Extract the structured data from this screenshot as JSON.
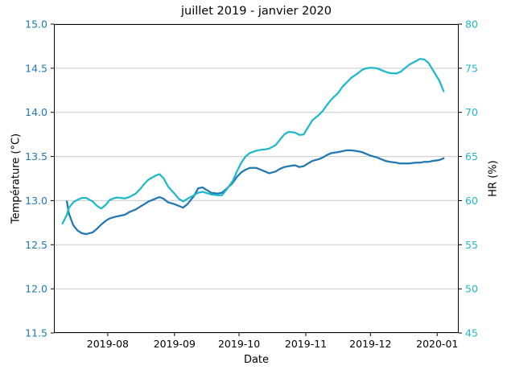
{
  "title": "juillet 2019 - janvier 2020",
  "axes": {
    "x": {
      "label": "Date",
      "ticks": [
        "2019-08",
        "2019-09",
        "2019-10",
        "2019-11",
        "2019-12",
        "2020-01"
      ]
    },
    "y_left": {
      "label": "Température (°C)",
      "color": "#1f77b4",
      "min": 11.5,
      "max": 15.0,
      "ticks": [
        "15.0",
        "14.5",
        "14.0",
        "13.5",
        "13.0",
        "12.5",
        "12.0",
        "11.5"
      ]
    },
    "y_right": {
      "label": "HR (%)",
      "color": "#1eb8cc",
      "min": 45,
      "max": 80,
      "ticks": [
        "80",
        "75",
        "70",
        "65",
        "60",
        "55",
        "50",
        "45"
      ]
    }
  },
  "chart_data": {
    "type": "line",
    "title": "juillet 2019 - janvier 2020",
    "xlabel": "Date",
    "x_type": "date",
    "xlim": [
      "2019-07-07",
      "2020-01-11"
    ],
    "grid": "horizontal",
    "grid_color": "#c9c9c9",
    "background": "#ffffff",
    "legend": "none",
    "series": [
      {
        "id": "temperature",
        "name": "Température (°C)",
        "axis": "left",
        "color": "#1f77b4",
        "ylim": [
          11.5,
          15.0
        ],
        "points": [
          [
            "2019-07-13",
            12.99
          ],
          [
            "2019-07-14",
            12.85
          ],
          [
            "2019-07-16",
            12.72
          ],
          [
            "2019-07-18",
            12.66
          ],
          [
            "2019-07-20",
            12.63
          ],
          [
            "2019-07-22",
            12.62
          ],
          [
            "2019-07-25",
            12.64
          ],
          [
            "2019-07-27",
            12.68
          ],
          [
            "2019-07-29",
            12.73
          ],
          [
            "2019-07-31",
            12.77
          ],
          [
            "2019-08-02",
            12.8
          ],
          [
            "2019-08-05",
            12.82
          ],
          [
            "2019-08-07",
            12.83
          ],
          [
            "2019-08-09",
            12.84
          ],
          [
            "2019-08-11",
            12.87
          ],
          [
            "2019-08-14",
            12.9
          ],
          [
            "2019-08-16",
            12.93
          ],
          [
            "2019-08-18",
            12.96
          ],
          [
            "2019-08-20",
            12.99
          ],
          [
            "2019-08-23",
            13.02
          ],
          [
            "2019-08-25",
            13.04
          ],
          [
            "2019-08-27",
            13.02
          ],
          [
            "2019-08-29",
            12.98
          ],
          [
            "2019-09-01",
            12.96
          ],
          [
            "2019-09-03",
            12.94
          ],
          [
            "2019-09-05",
            12.92
          ],
          [
            "2019-09-07",
            12.96
          ],
          [
            "2019-09-10",
            13.05
          ],
          [
            "2019-09-12",
            13.14
          ],
          [
            "2019-09-14",
            13.15
          ],
          [
            "2019-09-16",
            13.12
          ],
          [
            "2019-09-18",
            13.09
          ],
          [
            "2019-09-21",
            13.08
          ],
          [
            "2019-09-23",
            13.09
          ],
          [
            "2019-09-25",
            13.13
          ],
          [
            "2019-09-28",
            13.2
          ],
          [
            "2019-09-30",
            13.27
          ],
          [
            "2019-10-02",
            13.32
          ],
          [
            "2019-10-04",
            13.35
          ],
          [
            "2019-10-06",
            13.37
          ],
          [
            "2019-10-09",
            13.37
          ],
          [
            "2019-10-11",
            13.35
          ],
          [
            "2019-10-13",
            13.33
          ],
          [
            "2019-10-15",
            13.31
          ],
          [
            "2019-10-18",
            13.33
          ],
          [
            "2019-10-20",
            13.36
          ],
          [
            "2019-10-22",
            13.38
          ],
          [
            "2019-10-24",
            13.39
          ],
          [
            "2019-10-27",
            13.4
          ],
          [
            "2019-10-29",
            13.38
          ],
          [
            "2019-10-31",
            13.39
          ],
          [
            "2019-11-02",
            13.42
          ],
          [
            "2019-11-04",
            13.45
          ],
          [
            "2019-11-07",
            13.47
          ],
          [
            "2019-11-09",
            13.49
          ],
          [
            "2019-11-11",
            13.52
          ],
          [
            "2019-11-13",
            13.54
          ],
          [
            "2019-11-16",
            13.55
          ],
          [
            "2019-11-18",
            13.56
          ],
          [
            "2019-11-20",
            13.57
          ],
          [
            "2019-11-22",
            13.57
          ],
          [
            "2019-11-25",
            13.56
          ],
          [
            "2019-11-27",
            13.55
          ],
          [
            "2019-11-29",
            13.53
          ],
          [
            "2019-12-01",
            13.51
          ],
          [
            "2019-12-04",
            13.49
          ],
          [
            "2019-12-06",
            13.47
          ],
          [
            "2019-12-08",
            13.45
          ],
          [
            "2019-12-10",
            13.44
          ],
          [
            "2019-12-13",
            13.43
          ],
          [
            "2019-12-15",
            13.42
          ],
          [
            "2019-12-17",
            13.42
          ],
          [
            "2019-12-19",
            13.42
          ],
          [
            "2019-12-22",
            13.43
          ],
          [
            "2019-12-24",
            13.43
          ],
          [
            "2019-12-26",
            13.44
          ],
          [
            "2019-12-28",
            13.44
          ],
          [
            "2019-12-30",
            13.45
          ],
          [
            "2020-01-02",
            13.46
          ],
          [
            "2020-01-04",
            13.48
          ]
        ]
      },
      {
        "id": "humidity",
        "name": "HR (%)",
        "axis": "right",
        "color": "#1eb8cc",
        "ylim": [
          45,
          80
        ],
        "points": [
          [
            "2019-07-11",
            57.4
          ],
          [
            "2019-07-13",
            58.4
          ],
          [
            "2019-07-14",
            59.2
          ],
          [
            "2019-07-16",
            59.8
          ],
          [
            "2019-07-18",
            60.1
          ],
          [
            "2019-07-20",
            60.3
          ],
          [
            "2019-07-22",
            60.3
          ],
          [
            "2019-07-25",
            59.9
          ],
          [
            "2019-07-27",
            59.4
          ],
          [
            "2019-07-29",
            59.1
          ],
          [
            "2019-07-31",
            59.5
          ],
          [
            "2019-08-02",
            60.1
          ],
          [
            "2019-08-05",
            60.35
          ],
          [
            "2019-08-07",
            60.3
          ],
          [
            "2019-08-09",
            60.25
          ],
          [
            "2019-08-11",
            60.4
          ],
          [
            "2019-08-14",
            60.8
          ],
          [
            "2019-08-16",
            61.3
          ],
          [
            "2019-08-18",
            61.9
          ],
          [
            "2019-08-20",
            62.4
          ],
          [
            "2019-08-23",
            62.8
          ],
          [
            "2019-08-25",
            63.0
          ],
          [
            "2019-08-27",
            62.5
          ],
          [
            "2019-08-29",
            61.6
          ],
          [
            "2019-09-01",
            60.8
          ],
          [
            "2019-09-03",
            60.2
          ],
          [
            "2019-09-05",
            59.9
          ],
          [
            "2019-09-07",
            60.2
          ],
          [
            "2019-09-10",
            60.6
          ],
          [
            "2019-09-12",
            60.9
          ],
          [
            "2019-09-14",
            61.0
          ],
          [
            "2019-09-16",
            60.85
          ],
          [
            "2019-09-18",
            60.7
          ],
          [
            "2019-09-21",
            60.6
          ],
          [
            "2019-09-23",
            60.6
          ],
          [
            "2019-09-25",
            61.2
          ],
          [
            "2019-09-28",
            62.2
          ],
          [
            "2019-09-30",
            63.3
          ],
          [
            "2019-10-02",
            64.3
          ],
          [
            "2019-10-04",
            65.0
          ],
          [
            "2019-10-06",
            65.4
          ],
          [
            "2019-10-09",
            65.65
          ],
          [
            "2019-10-11",
            65.75
          ],
          [
            "2019-10-13",
            65.8
          ],
          [
            "2019-10-15",
            65.9
          ],
          [
            "2019-10-18",
            66.3
          ],
          [
            "2019-10-20",
            66.9
          ],
          [
            "2019-10-22",
            67.5
          ],
          [
            "2019-10-24",
            67.8
          ],
          [
            "2019-10-27",
            67.7
          ],
          [
            "2019-10-29",
            67.45
          ],
          [
            "2019-10-31",
            67.5
          ],
          [
            "2019-11-02",
            68.3
          ],
          [
            "2019-11-04",
            69.1
          ],
          [
            "2019-11-07",
            69.7
          ],
          [
            "2019-11-09",
            70.2
          ],
          [
            "2019-11-11",
            70.9
          ],
          [
            "2019-11-13",
            71.5
          ],
          [
            "2019-11-16",
            72.2
          ],
          [
            "2019-11-18",
            72.9
          ],
          [
            "2019-11-20",
            73.4
          ],
          [
            "2019-11-22",
            73.9
          ],
          [
            "2019-11-25",
            74.4
          ],
          [
            "2019-11-27",
            74.8
          ],
          [
            "2019-11-29",
            75.0
          ],
          [
            "2019-12-01",
            75.05
          ],
          [
            "2019-12-04",
            75.0
          ],
          [
            "2019-12-06",
            74.8
          ],
          [
            "2019-12-08",
            74.6
          ],
          [
            "2019-12-10",
            74.45
          ],
          [
            "2019-12-13",
            74.4
          ],
          [
            "2019-12-15",
            74.6
          ],
          [
            "2019-12-17",
            75.0
          ],
          [
            "2019-12-19",
            75.4
          ],
          [
            "2019-12-22",
            75.8
          ],
          [
            "2019-12-24",
            76.05
          ],
          [
            "2019-12-26",
            76.0
          ],
          [
            "2019-12-28",
            75.6
          ],
          [
            "2019-12-30",
            74.8
          ],
          [
            "2020-01-02",
            73.6
          ],
          [
            "2020-01-04",
            72.4
          ]
        ]
      }
    ]
  }
}
